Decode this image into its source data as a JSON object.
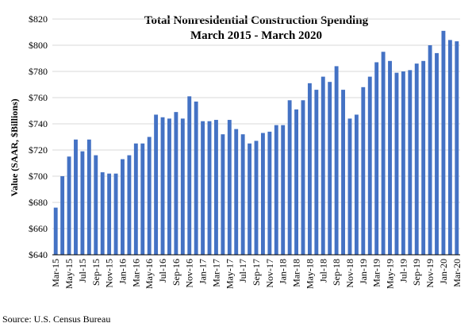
{
  "chart_data": {
    "type": "bar",
    "title_line1": "Total Nonresidential Construction Spending",
    "title_line2": "March 2015 - March 2020",
    "ylabel": "Value (SAAR, $Billions)",
    "xlabel": "",
    "ylim": [
      640,
      820
    ],
    "yticks": [
      "$640",
      "$660",
      "$680",
      "$700",
      "$720",
      "$740",
      "$760",
      "$780",
      "$800",
      "$820"
    ],
    "xtick_labels": [
      "Mar-15",
      "May-15",
      "Jul-15",
      "Sep-15",
      "Nov-15",
      "Jan-16",
      "Mar-16",
      "May-16",
      "Jul-16",
      "Sep-16",
      "Nov-16",
      "Jan-17",
      "Mar-17",
      "May-17",
      "Jul-17",
      "Sep-17",
      "Nov-17",
      "Jan-18",
      "Mar-18",
      "May-18",
      "Jul-18",
      "Sep-18",
      "Nov-18",
      "Jan-19",
      "Mar-19",
      "May-19",
      "Jul-19",
      "Sep-19",
      "Nov-19",
      "Jan-20",
      "Mar-20"
    ],
    "categories": [
      "Mar-15",
      "Apr-15",
      "May-15",
      "Jun-15",
      "Jul-15",
      "Aug-15",
      "Sep-15",
      "Oct-15",
      "Nov-15",
      "Dec-15",
      "Jan-16",
      "Feb-16",
      "Mar-16",
      "Apr-16",
      "May-16",
      "Jun-16",
      "Jul-16",
      "Aug-16",
      "Sep-16",
      "Oct-16",
      "Nov-16",
      "Dec-16",
      "Jan-17",
      "Feb-17",
      "Mar-17",
      "Apr-17",
      "May-17",
      "Jun-17",
      "Jul-17",
      "Aug-17",
      "Sep-17",
      "Oct-17",
      "Nov-17",
      "Dec-17",
      "Jan-18",
      "Feb-18",
      "Mar-18",
      "Apr-18",
      "May-18",
      "Jun-18",
      "Jul-18",
      "Aug-18",
      "Sep-18",
      "Oct-18",
      "Nov-18",
      "Dec-18",
      "Jan-19",
      "Feb-19",
      "Mar-19",
      "Apr-19",
      "May-19",
      "Jun-19",
      "Jul-19",
      "Aug-19",
      "Sep-19",
      "Oct-19",
      "Nov-19",
      "Dec-19",
      "Jan-20",
      "Feb-20",
      "Mar-20"
    ],
    "values": [
      676,
      700,
      715,
      728,
      719,
      728,
      716,
      703,
      702,
      702,
      713,
      716,
      725,
      725,
      730,
      747,
      745,
      744,
      749,
      744,
      761,
      757,
      742,
      742,
      743,
      732,
      743,
      736,
      732,
      725,
      727,
      733,
      734,
      739,
      739,
      758,
      751,
      758,
      771,
      766,
      776,
      772,
      784,
      766,
      744,
      747,
      768,
      776,
      787,
      795,
      788,
      779,
      780,
      781,
      786,
      788,
      800,
      794,
      811,
      804,
      803
    ],
    "bar_color": "#4472C4",
    "grid": true,
    "source": "Source:  U.S. Census Bureau"
  }
}
